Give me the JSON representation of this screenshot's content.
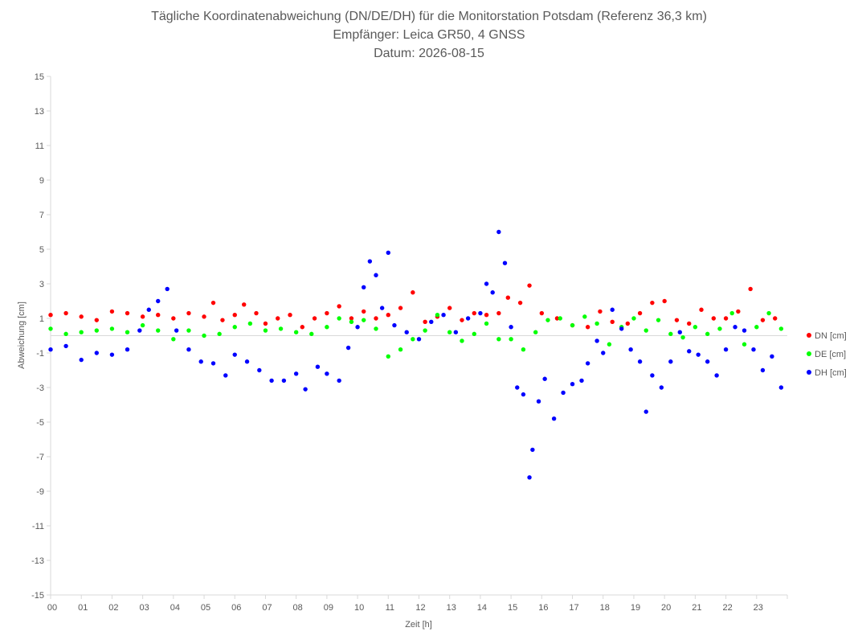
{
  "chart_data": {
    "type": "scatter",
    "title": "Tägliche Koordinatenabweichung (DN/DE/DH) für die Monitorstation Potsdam (Referenz 36,3 km)",
    "subtitle": "Empfänger: Leica GR50, 4 GNSS",
    "date_line": "Datum: 2026-08-15",
    "xlabel": "Zeit [h]",
    "ylabel": "Abweichung [cm]",
    "xlim": [
      0,
      24
    ],
    "ylim": [
      -15,
      15
    ],
    "x_ticks": [
      "00",
      "01",
      "02",
      "03",
      "04",
      "05",
      "06",
      "07",
      "08",
      "09",
      "10",
      "11",
      "12",
      "13",
      "14",
      "15",
      "16",
      "17",
      "18",
      "19",
      "20",
      "21",
      "22",
      "23"
    ],
    "y_ticks": [
      15,
      13,
      11,
      9,
      7,
      5,
      3,
      1,
      -1,
      -3,
      -5,
      -7,
      -9,
      -11,
      -13,
      -15
    ],
    "grid": false,
    "zero_line": true,
    "legend_position": "right",
    "series": [
      {
        "name": "DN [cm]",
        "color": "#ff0000",
        "points": [
          [
            0.0,
            1.2
          ],
          [
            0.5,
            1.3
          ],
          [
            1.0,
            1.1
          ],
          [
            1.5,
            0.9
          ],
          [
            2.0,
            1.4
          ],
          [
            2.5,
            1.3
          ],
          [
            3.0,
            1.1
          ],
          [
            3.5,
            1.2
          ],
          [
            4.0,
            1.0
          ],
          [
            4.5,
            1.3
          ],
          [
            5.0,
            1.1
          ],
          [
            5.3,
            1.9
          ],
          [
            5.6,
            0.9
          ],
          [
            6.0,
            1.2
          ],
          [
            6.3,
            1.8
          ],
          [
            6.7,
            1.3
          ],
          [
            7.0,
            0.7
          ],
          [
            7.4,
            1.0
          ],
          [
            7.8,
            1.2
          ],
          [
            8.2,
            0.5
          ],
          [
            8.6,
            1.0
          ],
          [
            9.0,
            1.3
          ],
          [
            9.4,
            1.7
          ],
          [
            9.8,
            1.0
          ],
          [
            10.2,
            1.4
          ],
          [
            10.6,
            1.0
          ],
          [
            11.0,
            1.2
          ],
          [
            11.4,
            1.6
          ],
          [
            11.8,
            2.5
          ],
          [
            12.2,
            0.8
          ],
          [
            12.6,
            1.1
          ],
          [
            13.0,
            1.6
          ],
          [
            13.4,
            0.9
          ],
          [
            13.8,
            1.3
          ],
          [
            14.2,
            1.2
          ],
          [
            14.6,
            1.3
          ],
          [
            14.9,
            2.2
          ],
          [
            15.3,
            1.9
          ],
          [
            15.6,
            2.9
          ],
          [
            16.0,
            1.3
          ],
          [
            16.5,
            1.0
          ],
          [
            17.0,
            0.6
          ],
          [
            17.5,
            0.5
          ],
          [
            17.9,
            1.4
          ],
          [
            18.3,
            0.8
          ],
          [
            18.8,
            0.7
          ],
          [
            19.2,
            1.3
          ],
          [
            19.6,
            1.9
          ],
          [
            20.0,
            2.0
          ],
          [
            20.4,
            0.9
          ],
          [
            20.8,
            0.7
          ],
          [
            21.2,
            1.5
          ],
          [
            21.6,
            1.0
          ],
          [
            22.0,
            1.0
          ],
          [
            22.4,
            1.4
          ],
          [
            22.8,
            2.7
          ],
          [
            23.2,
            0.9
          ],
          [
            23.6,
            1.0
          ]
        ]
      },
      {
        "name": "DE [cm]",
        "color": "#00ff00",
        "points": [
          [
            0.0,
            0.4
          ],
          [
            0.5,
            0.1
          ],
          [
            1.0,
            0.2
          ],
          [
            1.5,
            0.3
          ],
          [
            2.0,
            0.4
          ],
          [
            2.5,
            0.2
          ],
          [
            3.0,
            0.6
          ],
          [
            3.5,
            0.3
          ],
          [
            4.0,
            -0.2
          ],
          [
            4.5,
            0.3
          ],
          [
            5.0,
            0.0
          ],
          [
            5.5,
            0.1
          ],
          [
            6.0,
            0.5
          ],
          [
            6.5,
            0.7
          ],
          [
            7.0,
            0.3
          ],
          [
            7.5,
            0.4
          ],
          [
            8.0,
            0.2
          ],
          [
            8.5,
            0.1
          ],
          [
            9.0,
            0.5
          ],
          [
            9.4,
            1.0
          ],
          [
            9.8,
            0.8
          ],
          [
            10.2,
            0.9
          ],
          [
            10.6,
            0.4
          ],
          [
            11.0,
            -1.2
          ],
          [
            11.4,
            -0.8
          ],
          [
            11.8,
            -0.2
          ],
          [
            12.2,
            0.3
          ],
          [
            12.6,
            1.2
          ],
          [
            13.0,
            0.2
          ],
          [
            13.4,
            -0.3
          ],
          [
            13.8,
            0.1
          ],
          [
            14.2,
            0.7
          ],
          [
            14.6,
            -0.2
          ],
          [
            15.0,
            -0.2
          ],
          [
            15.4,
            -0.8
          ],
          [
            15.8,
            0.2
          ],
          [
            16.2,
            0.9
          ],
          [
            16.6,
            1.0
          ],
          [
            17.0,
            0.6
          ],
          [
            17.4,
            1.1
          ],
          [
            17.8,
            0.7
          ],
          [
            18.2,
            -0.5
          ],
          [
            18.6,
            0.5
          ],
          [
            19.0,
            1.0
          ],
          [
            19.4,
            0.3
          ],
          [
            19.8,
            0.9
          ],
          [
            20.2,
            0.1
          ],
          [
            20.6,
            -0.1
          ],
          [
            21.0,
            0.5
          ],
          [
            21.4,
            0.1
          ],
          [
            21.8,
            0.4
          ],
          [
            22.2,
            1.3
          ],
          [
            22.6,
            -0.5
          ],
          [
            23.0,
            0.5
          ],
          [
            23.4,
            1.3
          ],
          [
            23.8,
            0.4
          ]
        ]
      },
      {
        "name": "DH [cm]",
        "color": "#0000ff",
        "points": [
          [
            0.0,
            -0.8
          ],
          [
            0.5,
            -0.6
          ],
          [
            1.0,
            -1.4
          ],
          [
            1.5,
            -1.0
          ],
          [
            2.0,
            -1.1
          ],
          [
            2.5,
            -0.8
          ],
          [
            2.9,
            0.3
          ],
          [
            3.2,
            1.5
          ],
          [
            3.5,
            2.0
          ],
          [
            3.8,
            2.7
          ],
          [
            4.1,
            0.3
          ],
          [
            4.5,
            -0.8
          ],
          [
            4.9,
            -1.5
          ],
          [
            5.3,
            -1.6
          ],
          [
            5.7,
            -2.3
          ],
          [
            6.0,
            -1.1
          ],
          [
            6.4,
            -1.5
          ],
          [
            6.8,
            -2.0
          ],
          [
            7.2,
            -2.6
          ],
          [
            7.6,
            -2.6
          ],
          [
            8.0,
            -2.2
          ],
          [
            8.3,
            -3.1
          ],
          [
            8.7,
            -1.8
          ],
          [
            9.0,
            -2.2
          ],
          [
            9.4,
            -2.6
          ],
          [
            9.7,
            -0.7
          ],
          [
            10.0,
            0.5
          ],
          [
            10.2,
            2.8
          ],
          [
            10.4,
            4.3
          ],
          [
            10.6,
            3.5
          ],
          [
            10.8,
            1.6
          ],
          [
            11.0,
            4.8
          ],
          [
            11.2,
            0.6
          ],
          [
            11.6,
            0.2
          ],
          [
            12.0,
            -0.2
          ],
          [
            12.4,
            0.8
          ],
          [
            12.8,
            1.2
          ],
          [
            13.2,
            0.2
          ],
          [
            13.6,
            1.0
          ],
          [
            14.0,
            1.3
          ],
          [
            14.2,
            3.0
          ],
          [
            14.4,
            2.5
          ],
          [
            14.6,
            6.0
          ],
          [
            14.8,
            4.2
          ],
          [
            15.0,
            0.5
          ],
          [
            15.2,
            -3.0
          ],
          [
            15.4,
            -3.4
          ],
          [
            15.6,
            -8.2
          ],
          [
            15.7,
            -6.6
          ],
          [
            15.9,
            -3.8
          ],
          [
            16.1,
            -2.5
          ],
          [
            16.4,
            -4.8
          ],
          [
            16.7,
            -3.3
          ],
          [
            17.0,
            -2.8
          ],
          [
            17.3,
            -2.6
          ],
          [
            17.5,
            -1.6
          ],
          [
            17.8,
            -0.3
          ],
          [
            18.0,
            -1.0
          ],
          [
            18.3,
            1.5
          ],
          [
            18.6,
            0.4
          ],
          [
            18.9,
            -0.8
          ],
          [
            19.2,
            -1.5
          ],
          [
            19.4,
            -4.4
          ],
          [
            19.6,
            -2.3
          ],
          [
            19.9,
            -3.0
          ],
          [
            20.2,
            -1.5
          ],
          [
            20.5,
            0.2
          ],
          [
            20.8,
            -0.9
          ],
          [
            21.1,
            -1.1
          ],
          [
            21.4,
            -1.5
          ],
          [
            21.7,
            -2.3
          ],
          [
            22.0,
            -0.8
          ],
          [
            22.3,
            0.5
          ],
          [
            22.6,
            0.3
          ],
          [
            22.9,
            -0.8
          ],
          [
            23.2,
            -2.0
          ],
          [
            23.5,
            -1.2
          ],
          [
            23.8,
            -3.0
          ]
        ]
      }
    ]
  }
}
